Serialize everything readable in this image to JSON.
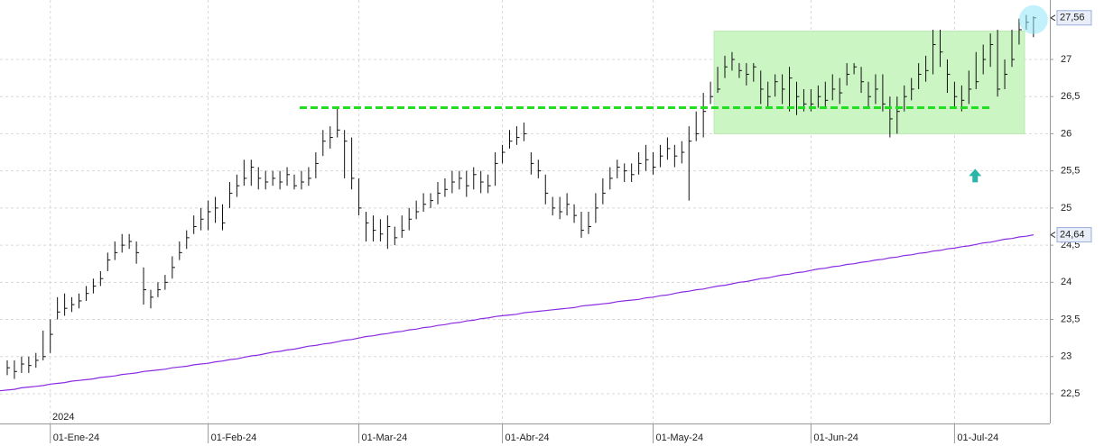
{
  "chart_data": {
    "type": "ohlc",
    "year_label": "2024",
    "categories": [
      null,
      null,
      null,
      null,
      null,
      null,
      "01-Ene-24",
      null,
      null,
      null,
      null,
      null,
      null,
      null,
      null,
      null,
      null,
      null,
      null,
      null,
      null,
      null,
      null,
      null,
      null,
      null,
      null,
      null,
      "01-Feb-24",
      null,
      null,
      null,
      null,
      null,
      null,
      null,
      null,
      null,
      null,
      null,
      null,
      null,
      null,
      null,
      null,
      null,
      null,
      null,
      null,
      "01-Mar-24",
      null,
      null,
      null,
      null,
      null,
      null,
      null,
      null,
      null,
      null,
      null,
      null,
      null,
      null,
      null,
      null,
      null,
      null,
      null,
      "01-Abr-24",
      null,
      null,
      null,
      null,
      null,
      null,
      null,
      null,
      null,
      null,
      null,
      null,
      null,
      null,
      null,
      null,
      null,
      null,
      null,
      null,
      "01-May-24",
      null,
      null,
      null,
      null,
      null,
      null,
      null,
      null,
      null,
      null,
      null,
      null,
      null,
      null,
      null,
      null,
      null,
      null,
      null,
      null,
      null,
      "01-Jun-24",
      null,
      null,
      null,
      null,
      null,
      null,
      null,
      null,
      null,
      null,
      null,
      null,
      null,
      null,
      null,
      null,
      null,
      null,
      null,
      "01-Jul-24",
      null,
      null,
      null,
      null,
      null,
      null,
      null,
      null,
      null,
      null,
      null
    ],
    "high": [
      22.95,
      22.95,
      23.0,
      23.0,
      23.05,
      23.35,
      23.5,
      23.8,
      23.85,
      23.8,
      23.85,
      23.95,
      24.05,
      24.15,
      24.4,
      24.55,
      24.65,
      24.65,
      24.55,
      24.2,
      23.9,
      24.0,
      24.1,
      24.35,
      24.55,
      24.7,
      24.9,
      25.0,
      25.1,
      25.15,
      25.05,
      25.35,
      25.45,
      25.65,
      25.65,
      25.55,
      25.5,
      25.5,
      25.5,
      25.55,
      25.45,
      25.5,
      25.55,
      25.75,
      26.05,
      26.1,
      26.35,
      26.05,
      25.95,
      25.4,
      24.95,
      24.9,
      24.85,
      24.9,
      24.75,
      24.9,
      25.0,
      25.1,
      25.2,
      25.2,
      25.35,
      25.4,
      25.5,
      25.5,
      25.5,
      25.55,
      25.5,
      25.45,
      25.75,
      25.85,
      26.05,
      26.1,
      26.15,
      25.75,
      25.65,
      25.45,
      25.15,
      25.15,
      25.2,
      25.05,
      24.95,
      24.95,
      25.2,
      25.4,
      25.55,
      25.65,
      25.6,
      25.6,
      25.75,
      25.85,
      25.75,
      25.85,
      25.95,
      25.85,
      25.9,
      26.1,
      26.3,
      26.55,
      26.7,
      26.9,
      27.05,
      27.1,
      26.95,
      26.95,
      26.95,
      26.85,
      26.7,
      26.8,
      26.8,
      26.9,
      26.7,
      26.6,
      26.6,
      26.65,
      26.7,
      26.8,
      26.75,
      26.95,
      26.95,
      26.9,
      26.7,
      26.8,
      26.8,
      26.5,
      26.5,
      26.65,
      26.75,
      26.95,
      27.05,
      27.4,
      27.4,
      27.0,
      26.7,
      26.65,
      26.85,
      27.1,
      27.2,
      27.35,
      27.4,
      27.0,
      27.4,
      27.55,
      27.6,
      27.58
    ],
    "low": [
      22.75,
      22.7,
      22.78,
      22.78,
      22.85,
      22.95,
      23.05,
      23.5,
      23.55,
      23.6,
      23.65,
      23.75,
      23.85,
      23.95,
      24.15,
      24.3,
      24.4,
      24.45,
      24.25,
      23.7,
      23.65,
      23.8,
      23.9,
      24.05,
      24.3,
      24.45,
      24.65,
      24.7,
      24.7,
      24.8,
      24.7,
      25.0,
      25.15,
      25.3,
      25.3,
      25.25,
      25.25,
      25.3,
      25.25,
      25.3,
      25.25,
      25.25,
      25.3,
      25.4,
      25.7,
      25.8,
      25.95,
      25.4,
      25.25,
      24.9,
      24.55,
      24.55,
      24.55,
      24.45,
      24.5,
      24.6,
      24.7,
      24.85,
      24.95,
      25.0,
      25.05,
      25.15,
      25.2,
      25.25,
      25.15,
      25.25,
      25.2,
      25.2,
      25.3,
      25.6,
      25.8,
      25.85,
      25.9,
      25.45,
      25.4,
      25.05,
      24.9,
      24.85,
      24.9,
      24.8,
      24.6,
      24.65,
      24.8,
      25.05,
      25.25,
      25.4,
      25.35,
      25.35,
      25.45,
      25.5,
      25.45,
      25.55,
      25.65,
      25.55,
      25.6,
      25.1,
      25.9,
      25.95,
      26.4,
      26.55,
      26.75,
      26.85,
      26.75,
      26.65,
      26.7,
      26.4,
      26.35,
      26.5,
      26.4,
      26.3,
      26.25,
      26.3,
      26.3,
      26.35,
      26.35,
      26.45,
      26.4,
      26.65,
      26.8,
      26.55,
      26.35,
      26.4,
      26.3,
      25.95,
      26.0,
      26.3,
      26.45,
      26.6,
      26.7,
      26.8,
      26.9,
      26.55,
      26.35,
      26.3,
      26.4,
      26.6,
      26.8,
      26.9,
      26.5,
      26.6,
      26.9,
      27.2,
      27.4,
      27.3
    ],
    "close": [
      22.85,
      22.8,
      22.9,
      22.88,
      22.95,
      23.0,
      23.3,
      23.6,
      23.65,
      23.7,
      23.75,
      23.85,
      23.95,
      24.05,
      24.3,
      24.4,
      24.5,
      24.55,
      24.4,
      23.9,
      23.8,
      23.9,
      24.0,
      24.2,
      24.4,
      24.6,
      24.75,
      24.85,
      24.95,
      25.0,
      24.8,
      25.2,
      25.3,
      25.4,
      25.55,
      25.4,
      25.35,
      25.4,
      25.35,
      25.45,
      25.3,
      25.35,
      25.4,
      25.6,
      25.9,
      25.95,
      26.05,
      25.9,
      25.4,
      25.0,
      24.8,
      24.7,
      24.65,
      24.75,
      24.6,
      24.7,
      24.85,
      24.95,
      25.05,
      25.1,
      25.2,
      25.25,
      25.35,
      25.4,
      25.3,
      25.45,
      25.35,
      25.3,
      25.6,
      25.75,
      25.9,
      25.95,
      26.0,
      25.6,
      25.5,
      25.2,
      25.0,
      24.95,
      25.05,
      24.9,
      24.7,
      24.75,
      25.0,
      25.2,
      25.4,
      25.55,
      25.5,
      25.45,
      25.6,
      25.65,
      25.55,
      25.7,
      25.8,
      25.7,
      25.75,
      25.9,
      26.0,
      26.3,
      26.5,
      26.6,
      26.9,
      27.0,
      26.85,
      26.8,
      26.9,
      26.6,
      26.5,
      26.7,
      26.6,
      26.75,
      26.5,
      26.4,
      26.4,
      26.5,
      26.45,
      26.6,
      26.55,
      26.8,
      26.9,
      26.7,
      26.5,
      26.6,
      26.4,
      26.2,
      26.3,
      26.5,
      26.6,
      26.8,
      26.85,
      27.2,
      27.1,
      26.8,
      26.5,
      26.45,
      26.6,
      26.7,
      27.0,
      27.2,
      26.6,
      26.8,
      27.0,
      27.4,
      27.5,
      27.56
    ],
    "bar_color": "#111111",
    "moving_average": {
      "color": "#8a2be2",
      "values": [
        22.55,
        22.56,
        22.58,
        22.59,
        22.6,
        22.61,
        22.63,
        22.64,
        22.65,
        22.67,
        22.68,
        22.69,
        22.7,
        22.72,
        22.73,
        22.74,
        22.76,
        22.77,
        22.78,
        22.8,
        22.81,
        22.82,
        22.83,
        22.85,
        22.86,
        22.87,
        22.89,
        22.9,
        22.91,
        22.93,
        22.94,
        22.96,
        22.97,
        22.99,
        23.01,
        23.02,
        23.04,
        23.06,
        23.07,
        23.09,
        23.1,
        23.12,
        23.14,
        23.15,
        23.17,
        23.18,
        23.2,
        23.22,
        23.23,
        23.25,
        23.27,
        23.28,
        23.3,
        23.31,
        23.33,
        23.34,
        23.36,
        23.37,
        23.39,
        23.4,
        23.42,
        23.43,
        23.45,
        23.46,
        23.48,
        23.49,
        23.51,
        23.52,
        23.54,
        23.55,
        23.56,
        23.57,
        23.59,
        23.6,
        23.61,
        23.62,
        23.63,
        23.64,
        23.65,
        23.66,
        23.68,
        23.69,
        23.7,
        23.71,
        23.72,
        23.74,
        23.75,
        23.76,
        23.77,
        23.79,
        23.8,
        23.82,
        23.83,
        23.85,
        23.87,
        23.88,
        23.9,
        23.91,
        23.93,
        23.95,
        23.96,
        23.98,
        24.0,
        24.01,
        24.03,
        24.05,
        24.06,
        24.08,
        24.1,
        24.11,
        24.13,
        24.14,
        24.16,
        24.18,
        24.19,
        24.21,
        24.22,
        24.24,
        24.25,
        24.27,
        24.28,
        24.3,
        24.31,
        24.33,
        24.34,
        24.36,
        24.37,
        24.39,
        24.4,
        24.42,
        24.43,
        24.45,
        24.46,
        24.48,
        24.49,
        24.51,
        24.53,
        24.54,
        24.56,
        24.58,
        24.59,
        24.61,
        24.62,
        24.64
      ]
    },
    "last_price_label": {
      "value": 27.56,
      "label": "27,56"
    },
    "ma_price_label": {
      "value": 24.64,
      "label": "24,64"
    },
    "resistance_level": {
      "value": 26.35,
      "color": "#22dd22"
    },
    "range_box": {
      "low": 26.0,
      "high": 27.38,
      "color": "#ccf5c4"
    },
    "arrow": {
      "value": 25.43,
      "color": "#2ab5a8"
    },
    "ylim": [
      22.1,
      27.8
    ],
    "yticks": [
      {
        "value": 22.5,
        "label": "22,5"
      },
      23,
      {
        "value": 23.5,
        "label": "23,5"
      },
      24,
      {
        "value": 24.5,
        "label": "24,5"
      },
      25,
      {
        "value": 25.5,
        "label": "25,5"
      },
      26,
      {
        "value": 26.5,
        "label": "26,5"
      },
      27
    ],
    "grid": true
  }
}
